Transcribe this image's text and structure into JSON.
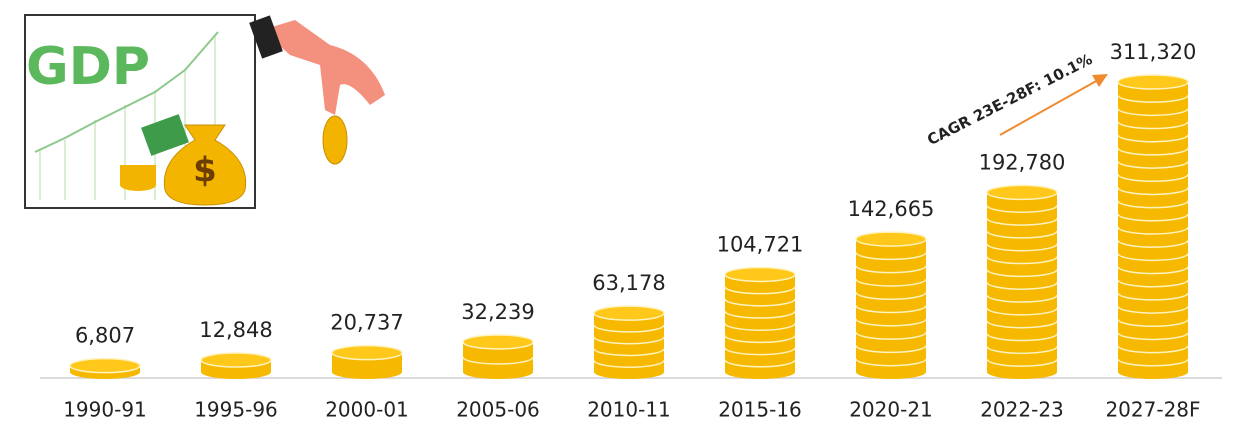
{
  "chart_data": {
    "type": "bar",
    "categories": [
      "1990-91",
      "1995-96",
      "2000-01",
      "2005-06",
      "2010-11",
      "2015-16",
      "2020-21",
      "2022-23",
      "2027-28F"
    ],
    "values": [
      6807,
      12848,
      20737,
      32239,
      63178,
      104721,
      142665,
      192780,
      311320
    ],
    "value_labels": [
      "6,807",
      "12,848",
      "20,737",
      "32,239",
      "63,178",
      "104,721",
      "142,665",
      "192,780",
      "311,320"
    ],
    "color": "#f7b900",
    "annotation": "CAGR 23E-28F: 10.1%",
    "image_texts": [
      "GDP",
      "$"
    ]
  }
}
